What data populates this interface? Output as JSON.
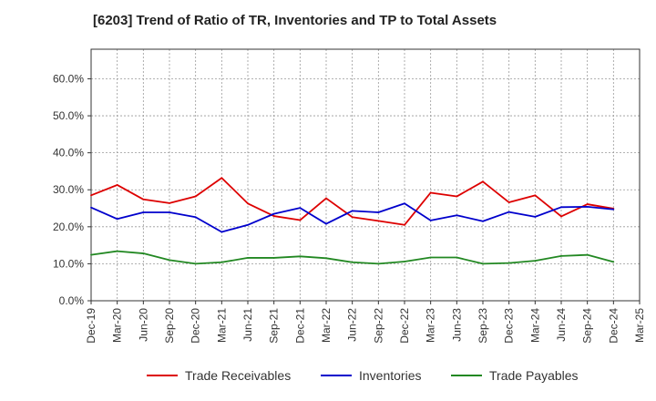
{
  "chart_data": {
    "type": "line",
    "title": "[6203]  Trend of Ratio of TR, Inventories and TP to Total Assets",
    "xlabel": "",
    "ylabel": "",
    "ylim": [
      0,
      0.68
    ],
    "y_ticks": [
      0,
      0.1,
      0.2,
      0.3,
      0.4,
      0.5,
      0.6
    ],
    "y_tick_labels": [
      "0.0%",
      "10.0%",
      "20.0%",
      "30.0%",
      "40.0%",
      "50.0%",
      "60.0%"
    ],
    "x_tick_labels": [
      "Dec-19",
      "Mar-20",
      "Jun-20",
      "Sep-20",
      "Dec-20",
      "Mar-21",
      "Jun-21",
      "Sep-21",
      "Dec-21",
      "Mar-22",
      "Jun-22",
      "Sep-22",
      "Dec-22",
      "Mar-23",
      "Jun-23",
      "Sep-23",
      "Dec-23",
      "Mar-24",
      "Jun-24",
      "Sep-24",
      "Dec-24",
      "Mar-25"
    ],
    "categories": [
      "Dec-19",
      "Mar-20",
      "Jun-20",
      "Sep-20",
      "Dec-20",
      "Mar-21",
      "Jun-21",
      "Sep-21",
      "Dec-21",
      "Mar-22",
      "Jun-22",
      "Sep-22",
      "Dec-22",
      "Mar-23",
      "Jun-23",
      "Sep-23",
      "Dec-23",
      "Mar-24",
      "Jun-24",
      "Sep-24",
      "Dec-24"
    ],
    "grid": true,
    "legend_position": "bottom",
    "series": [
      {
        "name": "Trade Receivables",
        "color": "#dd0000",
        "values": [
          0.285,
          0.313,
          0.274,
          0.264,
          0.282,
          0.332,
          0.263,
          0.229,
          0.218,
          0.277,
          0.226,
          0.216,
          0.205,
          0.292,
          0.282,
          0.322,
          0.266,
          0.285,
          0.228,
          0.261,
          0.249
        ]
      },
      {
        "name": "Inventories",
        "color": "#0000cc",
        "values": [
          0.252,
          0.221,
          0.239,
          0.239,
          0.226,
          0.186,
          0.205,
          0.235,
          0.251,
          0.208,
          0.243,
          0.239,
          0.263,
          0.217,
          0.231,
          0.215,
          0.24,
          0.227,
          0.253,
          0.254,
          0.247
        ]
      },
      {
        "name": "Trade Payables",
        "color": "#228822",
        "values": [
          0.124,
          0.134,
          0.128,
          0.11,
          0.1,
          0.104,
          0.116,
          0.116,
          0.12,
          0.115,
          0.104,
          0.1,
          0.106,
          0.117,
          0.117,
          0.1,
          0.102,
          0.108,
          0.121,
          0.124,
          0.105
        ]
      }
    ]
  }
}
